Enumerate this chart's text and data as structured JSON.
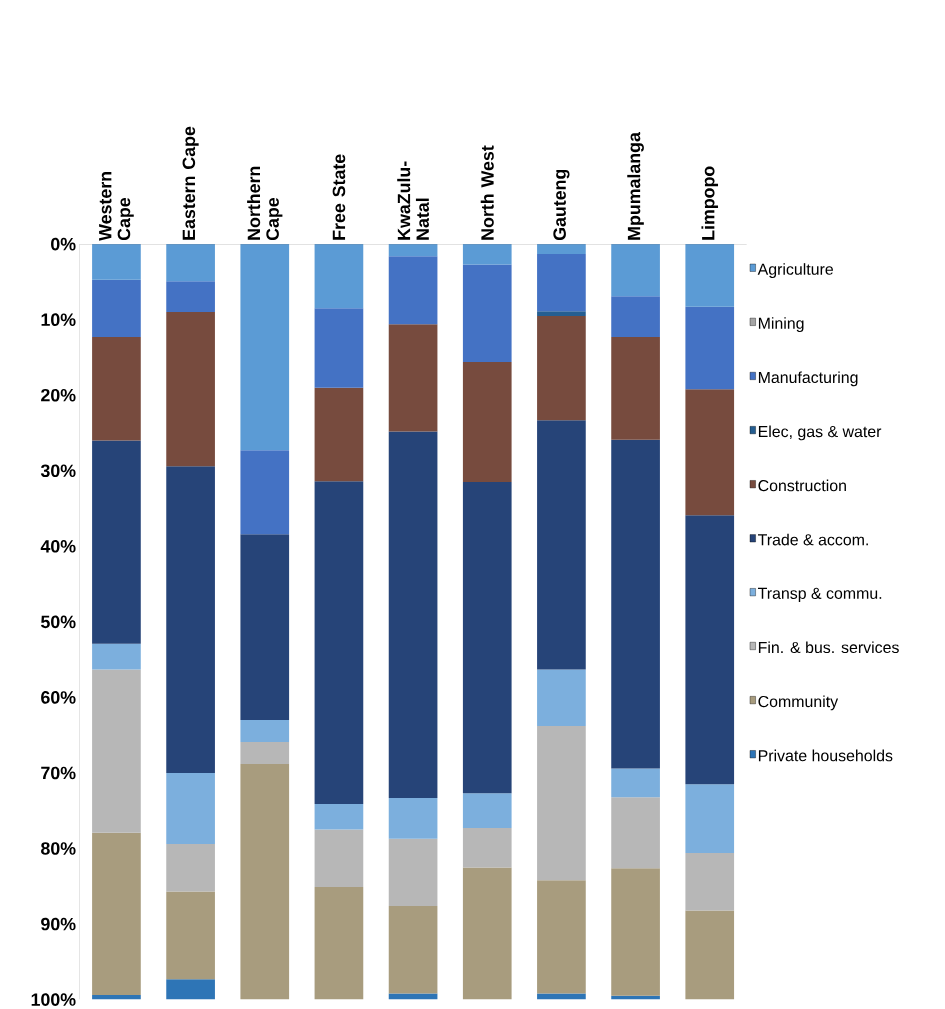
{
  "chart_data": {
    "type": "bar",
    "stacked": true,
    "categories": [
      "Western Cape",
      "Eastern Cape",
      "Northern Cape",
      "Free State",
      "KwaZulu-Natal",
      "North West",
      "Gauteng",
      "Mpumalanga",
      "Limpopo"
    ],
    "ylim": [
      100,
      0
    ],
    "yticks": [
      {
        "value": 0,
        "label": "0%"
      },
      {
        "value": 10,
        "label": "10%"
      },
      {
        "value": 20,
        "label": "20%"
      },
      {
        "value": 30,
        "label": "30%"
      },
      {
        "value": 40,
        "label": "40%"
      },
      {
        "value": 50,
        "label": "50%"
      },
      {
        "value": 60,
        "label": "60%"
      },
      {
        "value": 70,
        "label": "70%"
      },
      {
        "value": 80,
        "label": "80%"
      },
      {
        "value": 90,
        "label": "90%"
      },
      {
        "value": 100,
        "label": "100%"
      }
    ],
    "legend": "right",
    "grid": false,
    "series": [
      {
        "name": "Agriculture",
        "color": "#5b9bd5",
        "values": [
          4.7,
          4.9,
          27.3,
          8.5,
          1.6,
          2.7,
          1.3,
          6.9,
          8.3
        ]
      },
      {
        "name": "Mining",
        "color": "#a5a5a5",
        "values": [
          0,
          0,
          0,
          0,
          0,
          0,
          0,
          0,
          0
        ]
      },
      {
        "name": "Manufacturing",
        "color": "#4472c4",
        "values": [
          7.6,
          4.1,
          11.1,
          10.5,
          9.0,
          12.9,
          7.6,
          5.4,
          10.9
        ]
      },
      {
        "name": "Elec, gas & water",
        "color": "#255e91",
        "values": [
          0,
          0,
          0,
          0,
          0,
          0,
          0.6,
          0,
          0
        ]
      },
      {
        "name": "Construction",
        "color": "#774b3e",
        "values": [
          13.7,
          20.4,
          0,
          12.4,
          14.2,
          15.9,
          13.8,
          13.6,
          16.7
        ]
      },
      {
        "name": "Trade & accom.",
        "color": "#264478",
        "values": [
          26.9,
          40.6,
          24.6,
          42.7,
          48.5,
          41.2,
          33.0,
          43.5,
          35.6
        ]
      },
      {
        "name": "Transp & commu.",
        "color": "#7cafdd",
        "values": [
          3.4,
          9.4,
          2.9,
          3.4,
          5.4,
          4.6,
          7.5,
          3.8,
          9.1
        ]
      },
      {
        "name": "Fin. & bus. services",
        "color": "#b7b7b7",
        "values": [
          21.6,
          6.3,
          2.9,
          7.6,
          8.9,
          5.2,
          20.4,
          9.4,
          7.6
        ]
      },
      {
        "name": "Community",
        "color": "#a89c7e",
        "values": [
          21.5,
          11.6,
          31.2,
          14.9,
          11.6,
          17.5,
          15.0,
          16.9,
          11.8
        ]
      },
      {
        "name": "Private households",
        "color": "#2e75b6",
        "values": [
          0.6,
          2.7,
          0,
          0,
          0.8,
          0,
          0.8,
          0.5,
          0
        ]
      }
    ]
  }
}
